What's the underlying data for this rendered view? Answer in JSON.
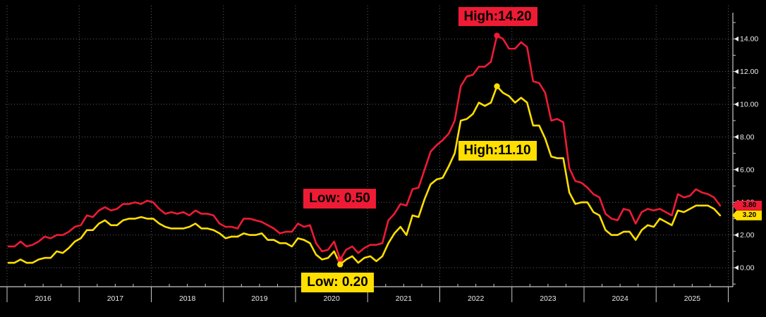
{
  "page": {
    "background": "#000000"
  },
  "chart_data": {
    "type": "line",
    "title": "",
    "x_axis": {
      "start_month": "2016-01",
      "interval": "monthly",
      "year_labels": [
        "2016",
        "2017",
        "2018",
        "2019",
        "2020",
        "2021",
        "2022",
        "2023",
        "2024",
        "2025"
      ],
      "grid": true
    },
    "y_axis": {
      "side": "right",
      "tick_labels": [
        "0.00",
        "2.00",
        "4.00",
        "6.00",
        "8.00",
        "10.00",
        "12.00",
        "14.00"
      ],
      "tick_values": [
        0,
        2,
        4,
        6,
        8,
        10,
        12,
        14
      ],
      "minor_tick_step": 1,
      "range": [
        -1.2,
        15.8
      ],
      "grid": true
    },
    "series": [
      {
        "name": "red",
        "color": "#ee1b35",
        "values": [
          1.3,
          1.3,
          1.6,
          1.3,
          1.4,
          1.6,
          1.9,
          1.8,
          2.0,
          2.0,
          2.2,
          2.5,
          2.6,
          3.2,
          3.1,
          3.5,
          3.7,
          3.5,
          3.6,
          3.9,
          3.9,
          4.0,
          3.9,
          4.1,
          4.0,
          3.6,
          3.3,
          3.4,
          3.3,
          3.4,
          3.2,
          3.5,
          3.3,
          3.3,
          3.2,
          2.7,
          2.5,
          2.5,
          2.4,
          3.0,
          3.0,
          2.9,
          2.8,
          2.6,
          2.4,
          2.1,
          2.2,
          2.2,
          2.7,
          2.5,
          2.6,
          1.5,
          1.0,
          1.1,
          1.6,
          0.5,
          1.1,
          1.3,
          0.9,
          1.2,
          1.4,
          1.4,
          1.5,
          2.9,
          3.3,
          3.9,
          3.8,
          4.8,
          4.9,
          6.0,
          7.1,
          7.5,
          7.8,
          8.2,
          9.0,
          11.1,
          11.7,
          11.8,
          12.3,
          12.3,
          12.6,
          14.2,
          14.0,
          13.4,
          13.4,
          13.8,
          13.5,
          11.4,
          11.3,
          10.7,
          9.0,
          9.1,
          8.9,
          6.1,
          5.3,
          5.2,
          4.9,
          4.5,
          4.3,
          3.3,
          3.0,
          2.9,
          3.6,
          3.5,
          2.7,
          3.4,
          3.6,
          3.5,
          3.6,
          3.4,
          3.2,
          4.5,
          4.3,
          4.4,
          4.8,
          4.6,
          4.5,
          4.3,
          3.8
        ]
      },
      {
        "name": "yellow",
        "color": "#ffdf00",
        "values": [
          0.3,
          0.3,
          0.5,
          0.3,
          0.3,
          0.5,
          0.6,
          0.6,
          1.0,
          0.9,
          1.2,
          1.6,
          1.8,
          2.3,
          2.3,
          2.7,
          2.9,
          2.6,
          2.6,
          2.9,
          3.0,
          3.0,
          3.1,
          3.0,
          3.0,
          2.7,
          2.5,
          2.4,
          2.4,
          2.4,
          2.5,
          2.7,
          2.4,
          2.4,
          2.3,
          2.1,
          1.8,
          1.9,
          1.9,
          2.1,
          2.0,
          2.0,
          2.1,
          1.7,
          1.7,
          1.5,
          1.5,
          1.3,
          1.8,
          1.7,
          1.5,
          0.8,
          0.5,
          0.6,
          1.0,
          0.2,
          0.5,
          0.7,
          0.3,
          0.6,
          0.7,
          0.4,
          0.7,
          1.5,
          2.1,
          2.5,
          2.0,
          3.2,
          3.1,
          4.2,
          5.1,
          5.4,
          5.5,
          6.2,
          7.0,
          9.0,
          9.1,
          9.4,
          10.1,
          9.9,
          10.1,
          11.1,
          10.7,
          10.5,
          10.1,
          10.4,
          10.1,
          8.7,
          8.7,
          7.9,
          6.8,
          6.7,
          6.7,
          4.6,
          3.9,
          4.0,
          4.0,
          3.4,
          3.2,
          2.3,
          2.0,
          2.0,
          2.2,
          2.2,
          1.7,
          2.3,
          2.6,
          2.5,
          3.0,
          2.8,
          2.6,
          3.5,
          3.4,
          3.6,
          3.8,
          3.8,
          3.8,
          3.6,
          3.2
        ]
      }
    ],
    "annotations": [
      {
        "id": "high-red",
        "label": "High:14.20",
        "point_index": 81,
        "value": 14.2,
        "color": "#ee1b35"
      },
      {
        "id": "high-yellow",
        "label": "High:11.10",
        "point_index": 81,
        "value": 11.1,
        "color": "#ffdf00"
      },
      {
        "id": "low-red",
        "label": "Low: 0.50",
        "point_index": 55,
        "value": 0.5,
        "color": "#ee1b35"
      },
      {
        "id": "low-yellow",
        "label": "Low: 0.20",
        "point_index": 55,
        "value": 0.2,
        "color": "#ffdf00"
      }
    ],
    "last_value_badges": [
      {
        "label": "3.80",
        "value": 3.8,
        "color": "#ee1b35"
      },
      {
        "label": "3.20",
        "value": 3.2,
        "color": "#ffdf00"
      }
    ],
    "layout_hints": {
      "grid_style": "dotted",
      "legend": "none",
      "background": "#000000"
    }
  }
}
